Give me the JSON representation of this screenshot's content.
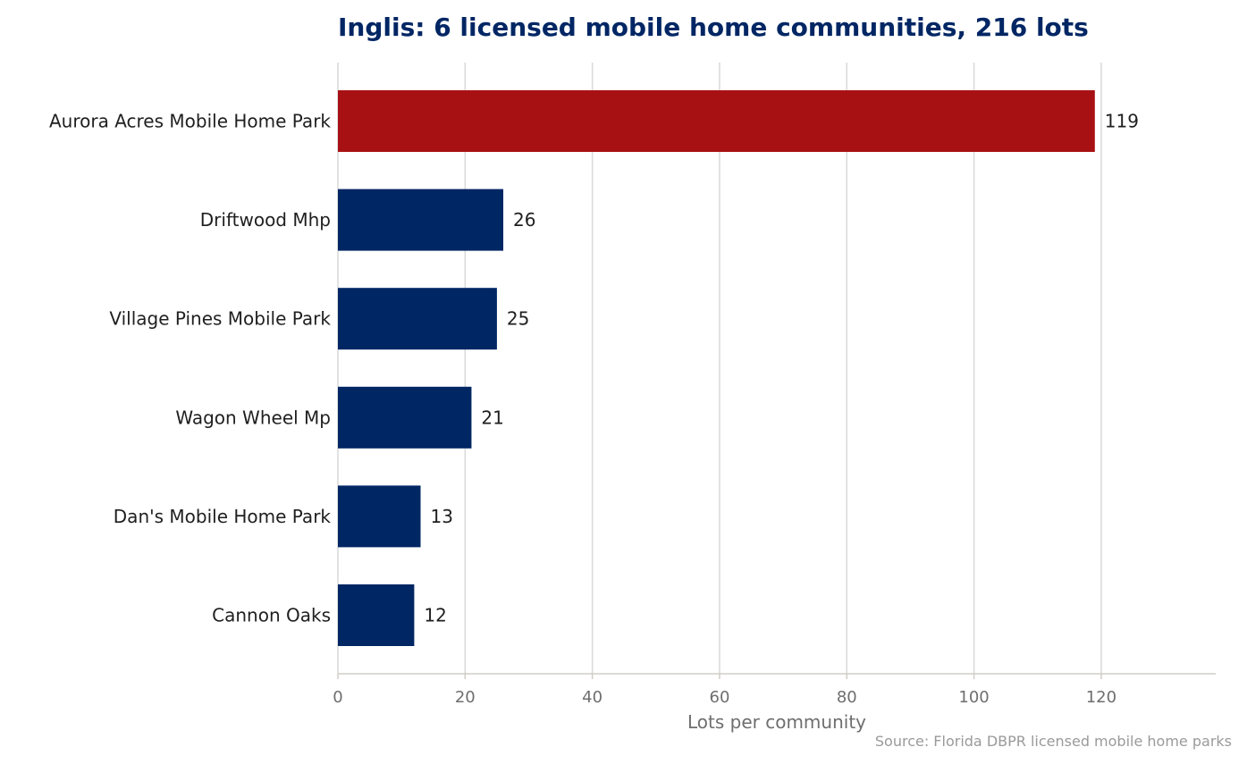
{
  "chart_data": {
    "type": "bar",
    "orientation": "horizontal",
    "title": "Inglis: 6 licensed mobile home communities, 216 lots",
    "xlabel": "Lots per community",
    "ylabel": "",
    "xlim": [
      0,
      138
    ],
    "xticks": [
      0,
      20,
      40,
      60,
      80,
      100,
      120
    ],
    "grid": "vertical",
    "categories": [
      "Aurora Acres Mobile Home Park",
      "Driftwood Mhp",
      "Village Pines Mobile Park",
      "Wagon Wheel Mp",
      "Dan's Mobile Home Park",
      "Cannon Oaks"
    ],
    "values": [
      119,
      26,
      25,
      21,
      13,
      12
    ],
    "highlight_index": 0,
    "source": "Source: Florida DBPR licensed mobile home parks"
  },
  "colors": {
    "title": "#002664",
    "bar": "#002664",
    "highlight": "#a81114",
    "grid": "#d9d9d9",
    "axis": "#d0cdc6"
  }
}
